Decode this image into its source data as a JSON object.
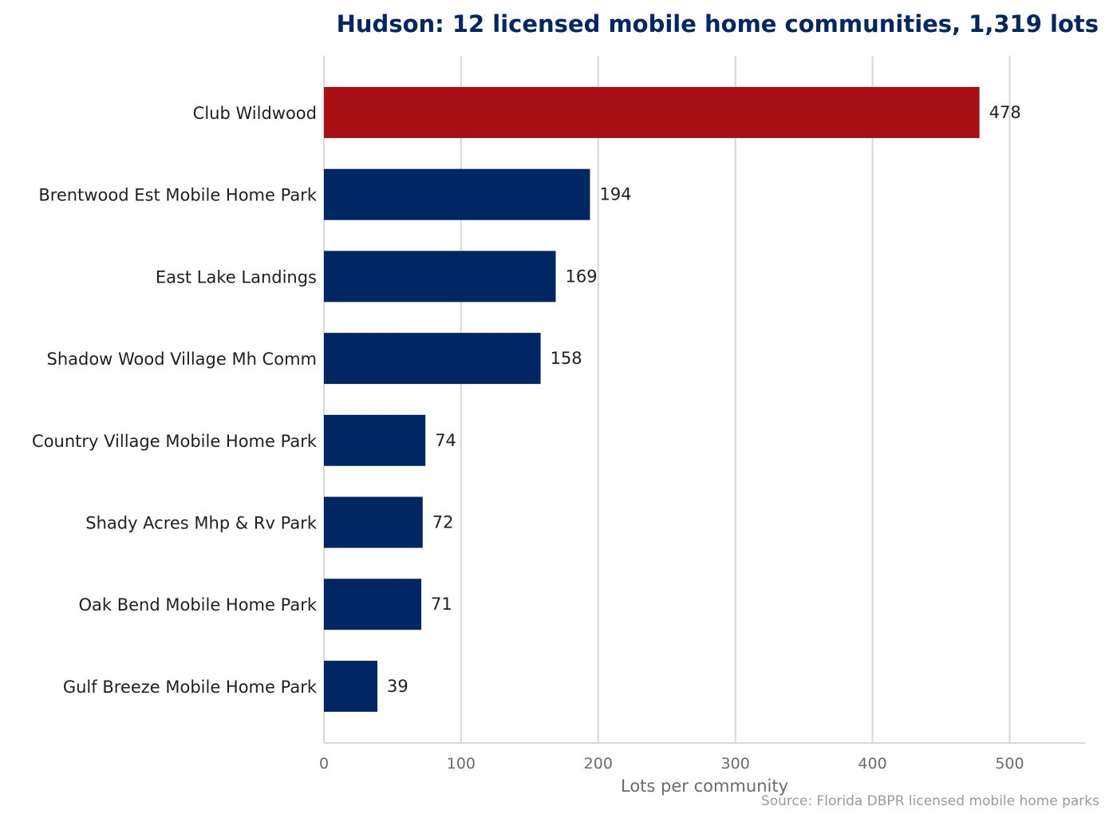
{
  "chart_data": {
    "type": "bar",
    "orientation": "horizontal",
    "title": "Hudson: 12 licensed mobile home communities, 1,319 lots",
    "xlabel": "Lots per community",
    "ylabel": "",
    "xlim": [
      0,
      555
    ],
    "xticks": [
      0,
      100,
      200,
      300,
      400,
      500
    ],
    "grid": true,
    "categories": [
      "Club Wildwood",
      "Brentwood Est Mobile Home Park",
      "East Lake Landings",
      "Shadow  Wood Village Mh Comm",
      "Country Village Mobile Home Park",
      "Shady Acres Mhp & Rv Park",
      "Oak Bend Mobile Home Park",
      "Gulf Breeze Mobile Home Park"
    ],
    "values": [
      478,
      194,
      169,
      158,
      74,
      72,
      71,
      39
    ],
    "highlight_index": 0,
    "colors": {
      "bar": "#002664",
      "highlight": "#a81015",
      "grid": "#d9d8d2"
    },
    "source": "Source: Florida DBPR licensed mobile home parks"
  }
}
